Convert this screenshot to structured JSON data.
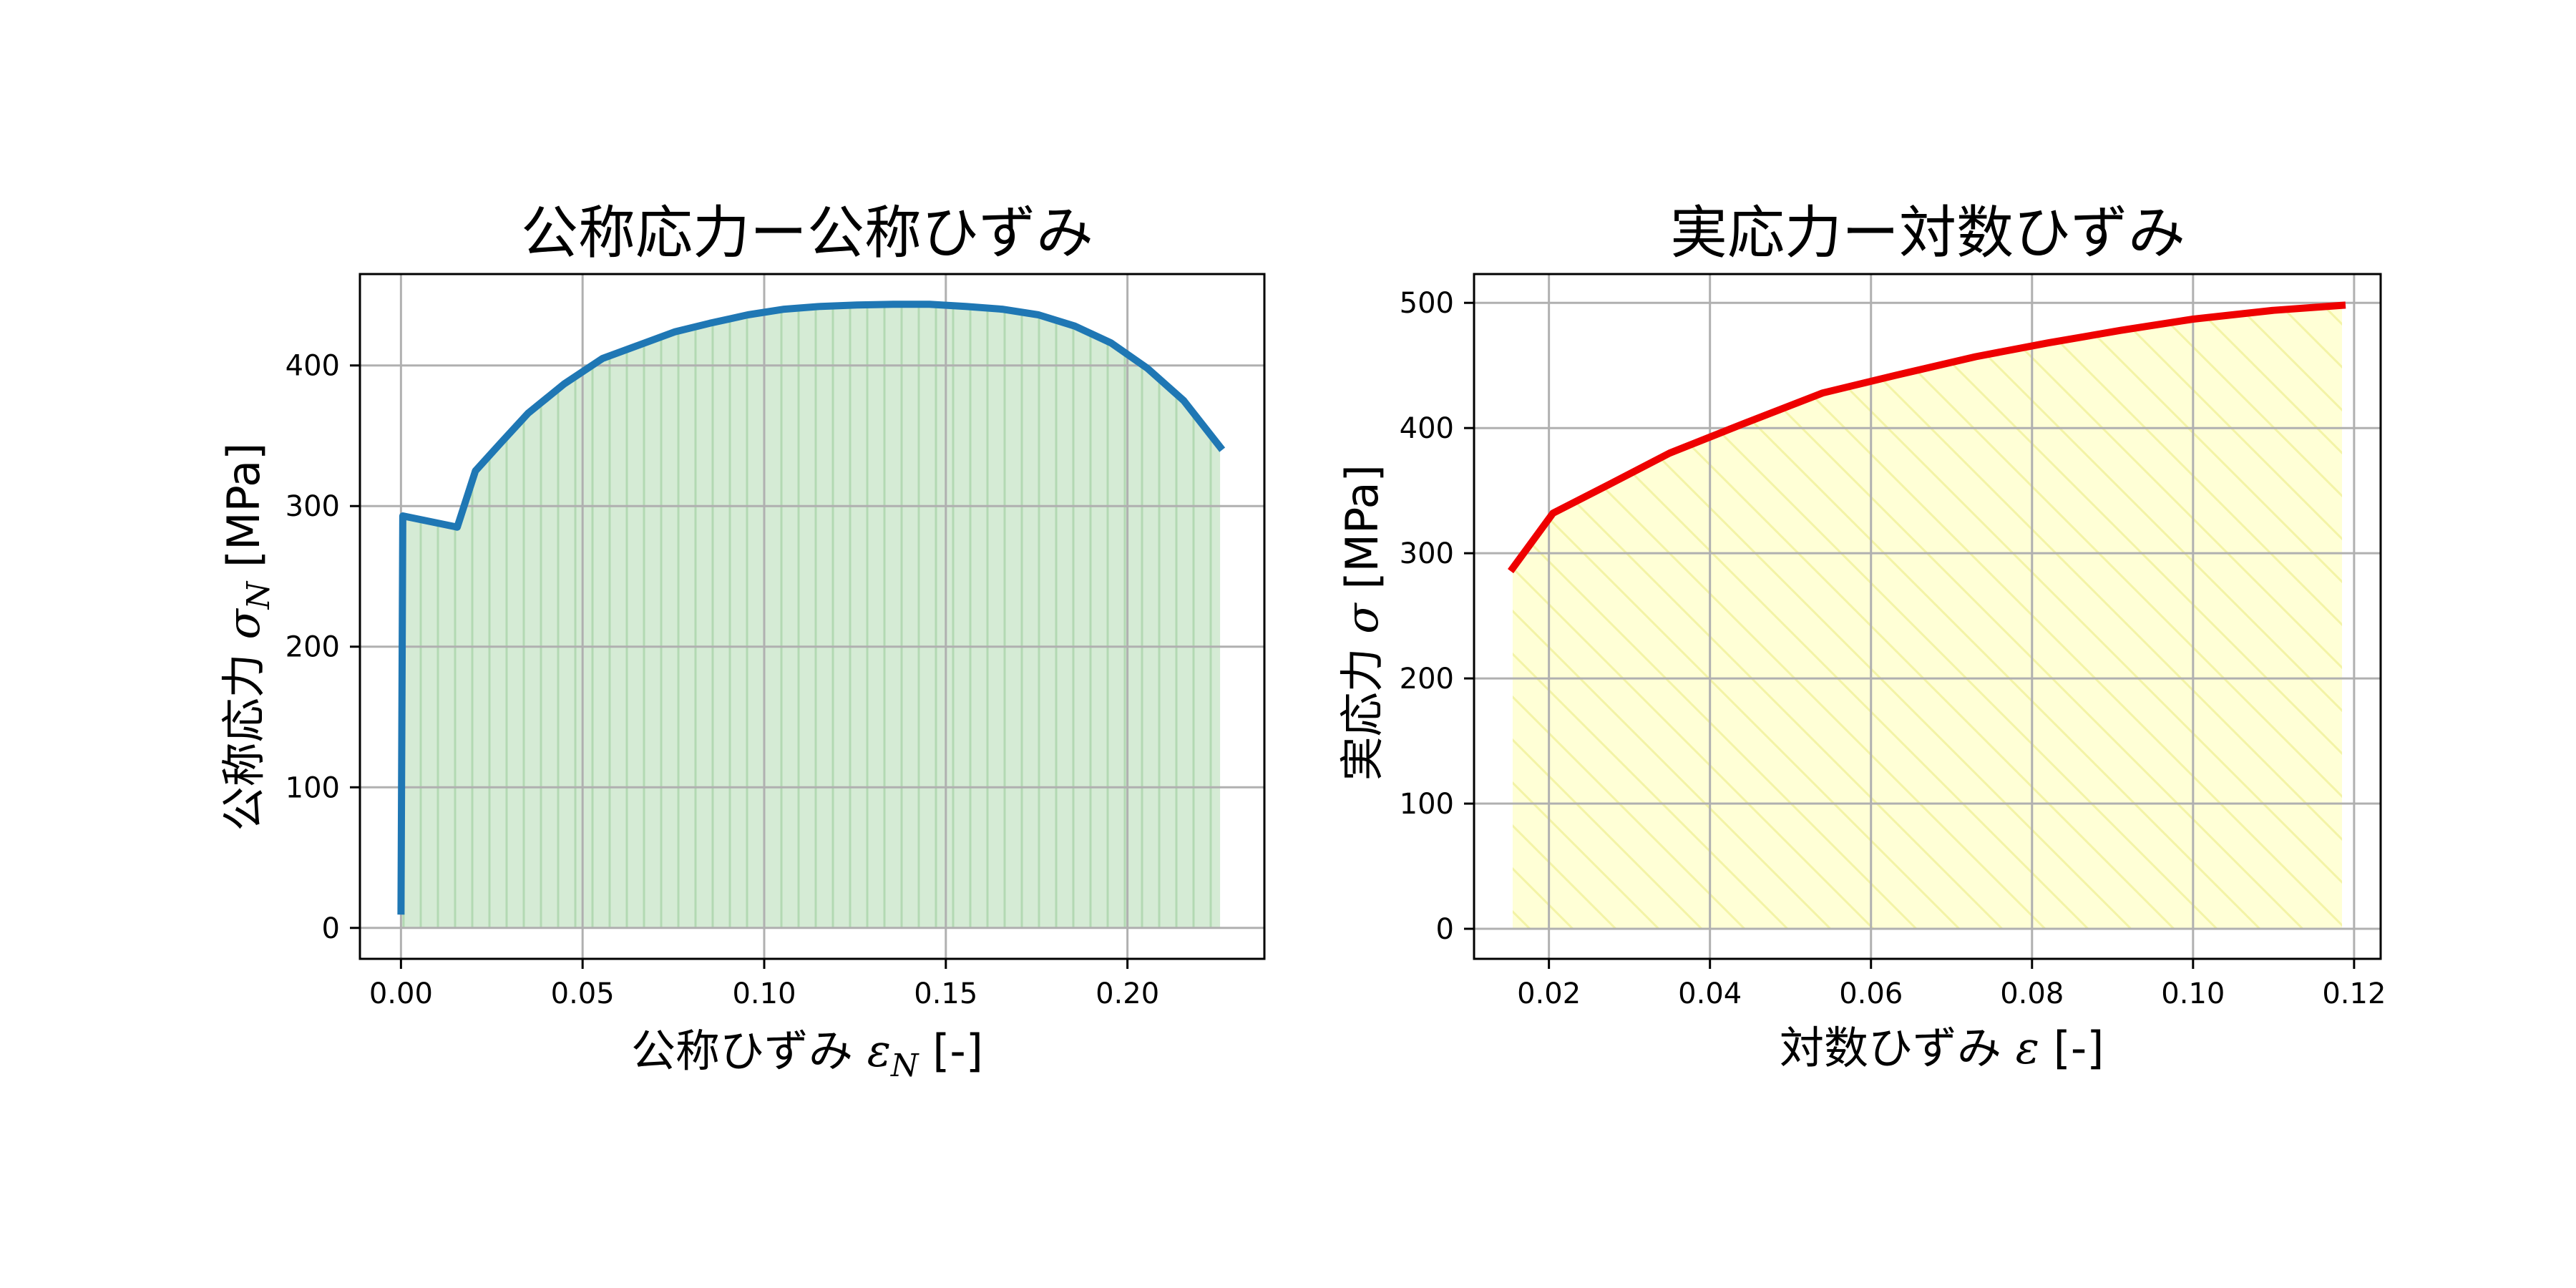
{
  "chart_data": [
    {
      "type": "area",
      "title": "公称応力ー公称ひずみ",
      "xlabel": {
        "prefix": "公称ひずみ ",
        "symbol": "ε",
        "subscript": "N",
        "suffix": " [-]"
      },
      "ylabel": {
        "prefix": "公称応力 ",
        "symbol": "σ",
        "subscript": "N",
        "suffix": " [MPa]"
      },
      "xlim": [
        -0.0113,
        0.2377
      ],
      "ylim": [
        -22,
        465
      ],
      "xticks": [
        0.0,
        0.05,
        0.1,
        0.15,
        0.2
      ],
      "xtick_labels": [
        "0.00",
        "0.05",
        "0.10",
        "0.15",
        "0.20"
      ],
      "yticks": [
        0,
        100,
        200,
        300,
        400
      ],
      "ytick_labels": [
        "0",
        "100",
        "200",
        "300",
        "400"
      ],
      "grid": true,
      "line_color": "#1f77b4",
      "fill_color": "#d5ebd5",
      "hatch": "vertical",
      "hatch_color": "#b3d9b3",
      "series": [
        {
          "x": [
            0.0,
            0.0005,
            0.0155,
            0.0205,
            0.0275,
            0.035,
            0.045,
            0.0555,
            0.065,
            0.0755,
            0.085,
            0.0955,
            0.1055,
            0.1155,
            0.1255,
            0.1355,
            0.1455,
            0.1555,
            0.1655,
            0.1755,
            0.1855,
            0.1955,
            0.2055,
            0.2155,
            0.2255
          ],
          "y": [
            12,
            293,
            285,
            325,
            345,
            366,
            387,
            405,
            414,
            424,
            430,
            436,
            440,
            442,
            443,
            443.5,
            443.5,
            442,
            440,
            436,
            428,
            416,
            398,
            375,
            342
          ]
        }
      ]
    },
    {
      "type": "area",
      "title": "実応力ー対数ひずみ",
      "xlabel": {
        "prefix": "対数ひずみ ",
        "symbol": "ε",
        "subscript": "",
        "suffix": " [-]"
      },
      "ylabel": {
        "prefix": "実応力 ",
        "symbol": "σ",
        "subscript": "",
        "suffix": " [MPa]"
      },
      "xlim": [
        0.0107,
        0.1233
      ],
      "ylim": [
        -24,
        523
      ],
      "xticks": [
        0.02,
        0.04,
        0.06,
        0.08,
        0.1,
        0.12
      ],
      "xtick_labels": [
        "0.02",
        "0.04",
        "0.06",
        "0.08",
        "0.10",
        "0.12"
      ],
      "yticks": [
        0,
        100,
        200,
        300,
        400,
        500
      ],
      "ytick_labels": [
        "0",
        "100",
        "200",
        "300",
        "400",
        "500"
      ],
      "grid": true,
      "line_color": "#ee0000",
      "fill_color": "#ffffd6",
      "hatch": "diagonal",
      "hatch_color": "#f3f3a6",
      "series": [
        {
          "x": [
            0.0155,
            0.0205,
            0.0275,
            0.035,
            0.044,
            0.054,
            0.063,
            0.073,
            0.082,
            0.091,
            0.1,
            0.11,
            0.1185
          ],
          "y": [
            288,
            332,
            355,
            380,
            403,
            428,
            442,
            457,
            468,
            478,
            487,
            494,
            498
          ]
        }
      ]
    }
  ]
}
